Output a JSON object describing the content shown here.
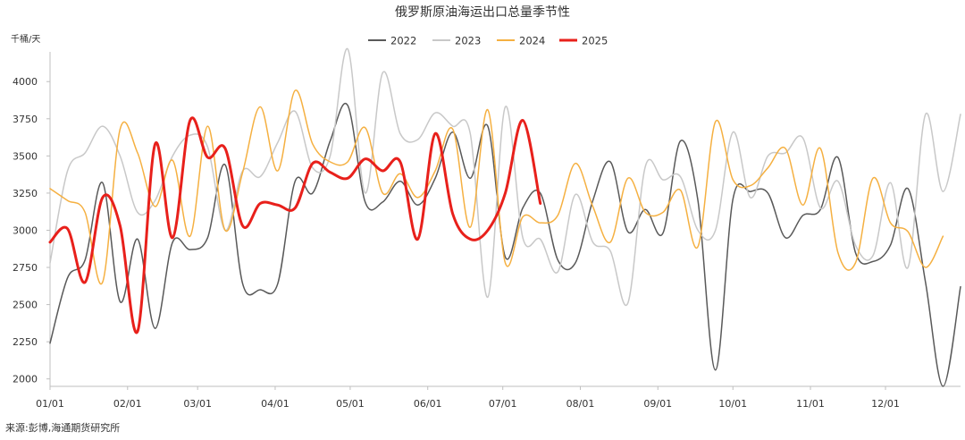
{
  "chart_data": {
    "type": "line",
    "title": "俄罗斯原油海运出口总量季节性",
    "ylabel": "千桶/天",
    "xlabel": "",
    "ylim": [
      1950,
      4200
    ],
    "yticks": [
      2000,
      2250,
      2500,
      2750,
      3000,
      3250,
      3500,
      3750,
      4000
    ],
    "x_tick_labels": [
      "01/01",
      "02/01",
      "03/01",
      "04/01",
      "05/01",
      "06/01",
      "07/01",
      "08/01",
      "09/01",
      "10/01",
      "11/01",
      "12/01"
    ],
    "x_unit": "week of year (1–53)",
    "grid": false,
    "legend_position": "top-center",
    "series": [
      {
        "name": "2022",
        "color": "#595959",
        "values": [
          [
            1,
            2240
          ],
          [
            2,
            2680
          ],
          [
            3,
            2800
          ],
          [
            4,
            3320
          ],
          [
            5,
            2520
          ],
          [
            6,
            2940
          ],
          [
            7,
            2340
          ],
          [
            8,
            2920
          ],
          [
            9,
            2870
          ],
          [
            10,
            2950
          ],
          [
            11,
            3440
          ],
          [
            12,
            2640
          ],
          [
            13,
            2600
          ],
          [
            14,
            2640
          ],
          [
            15,
            3330
          ],
          [
            16,
            3250
          ],
          [
            17,
            3600
          ],
          [
            18,
            3840
          ],
          [
            19,
            3190
          ],
          [
            20,
            3190
          ],
          [
            21,
            3330
          ],
          [
            22,
            3170
          ],
          [
            23,
            3350
          ],
          [
            24,
            3660
          ],
          [
            25,
            3350
          ],
          [
            26,
            3700
          ],
          [
            27,
            2820
          ],
          [
            28,
            3150
          ],
          [
            29,
            3250
          ],
          [
            30,
            2800
          ],
          [
            31,
            2780
          ],
          [
            32,
            3200
          ],
          [
            33,
            3460
          ],
          [
            34,
            2990
          ],
          [
            35,
            3140
          ],
          [
            36,
            2980
          ],
          [
            37,
            3600
          ],
          [
            38,
            3200
          ],
          [
            39,
            2060
          ],
          [
            40,
            3210
          ],
          [
            41,
            3260
          ],
          [
            42,
            3250
          ],
          [
            43,
            2950
          ],
          [
            44,
            3100
          ],
          [
            45,
            3140
          ],
          [
            46,
            3490
          ],
          [
            47,
            2850
          ],
          [
            48,
            2790
          ],
          [
            49,
            2900
          ],
          [
            50,
            3280
          ],
          [
            51,
            2650
          ],
          [
            52,
            1950
          ],
          [
            53,
            2620
          ]
        ]
      },
      {
        "name": "2023",
        "color": "#c8c8c8",
        "values": [
          [
            1,
            2780
          ],
          [
            2,
            3400
          ],
          [
            3,
            3520
          ],
          [
            4,
            3700
          ],
          [
            5,
            3500
          ],
          [
            6,
            3120
          ],
          [
            7,
            3200
          ],
          [
            8,
            3500
          ],
          [
            9,
            3640
          ],
          [
            10,
            3560
          ],
          [
            11,
            3000
          ],
          [
            12,
            3400
          ],
          [
            13,
            3360
          ],
          [
            14,
            3590
          ],
          [
            15,
            3800
          ],
          [
            16,
            3420
          ],
          [
            17,
            3500
          ],
          [
            18,
            4220
          ],
          [
            19,
            3250
          ],
          [
            20,
            4060
          ],
          [
            21,
            3650
          ],
          [
            22,
            3610
          ],
          [
            23,
            3790
          ],
          [
            24,
            3700
          ],
          [
            25,
            3650
          ],
          [
            26,
            2550
          ],
          [
            27,
            3830
          ],
          [
            28,
            2950
          ],
          [
            29,
            2940
          ],
          [
            30,
            2720
          ],
          [
            31,
            3240
          ],
          [
            32,
            2920
          ],
          [
            33,
            2860
          ],
          [
            34,
            2510
          ],
          [
            35,
            3430
          ],
          [
            36,
            3340
          ],
          [
            37,
            3360
          ],
          [
            38,
            3000
          ],
          [
            39,
            3000
          ],
          [
            40,
            3660
          ],
          [
            41,
            3220
          ],
          [
            42,
            3500
          ],
          [
            43,
            3520
          ],
          [
            44,
            3620
          ],
          [
            45,
            3150
          ],
          [
            46,
            3330
          ],
          [
            47,
            2900
          ],
          [
            48,
            2830
          ],
          [
            49,
            3320
          ],
          [
            50,
            2750
          ],
          [
            51,
            3780
          ],
          [
            52,
            3260
          ],
          [
            53,
            3780
          ]
        ]
      },
      {
        "name": "2024",
        "color": "#f5b041",
        "values": [
          [
            1,
            3280
          ],
          [
            2,
            3200
          ],
          [
            3,
            3120
          ],
          [
            4,
            2650
          ],
          [
            5,
            3680
          ],
          [
            6,
            3520
          ],
          [
            7,
            3160
          ],
          [
            8,
            3470
          ],
          [
            9,
            2960
          ],
          [
            10,
            3700
          ],
          [
            11,
            3000
          ],
          [
            12,
            3390
          ],
          [
            13,
            3830
          ],
          [
            14,
            3400
          ],
          [
            15,
            3940
          ],
          [
            16,
            3580
          ],
          [
            17,
            3460
          ],
          [
            18,
            3460
          ],
          [
            19,
            3690
          ],
          [
            20,
            3250
          ],
          [
            21,
            3380
          ],
          [
            22,
            3220
          ],
          [
            23,
            3400
          ],
          [
            24,
            3680
          ],
          [
            25,
            3020
          ],
          [
            26,
            3810
          ],
          [
            27,
            2780
          ],
          [
            28,
            3090
          ],
          [
            29,
            3050
          ],
          [
            30,
            3100
          ],
          [
            31,
            3450
          ],
          [
            32,
            3160
          ],
          [
            33,
            2920
          ],
          [
            34,
            3350
          ],
          [
            35,
            3120
          ],
          [
            36,
            3120
          ],
          [
            37,
            3270
          ],
          [
            38,
            2890
          ],
          [
            39,
            3730
          ],
          [
            40,
            3340
          ],
          [
            41,
            3300
          ],
          [
            42,
            3420
          ],
          [
            43,
            3550
          ],
          [
            44,
            3170
          ],
          [
            45,
            3550
          ],
          [
            46,
            2850
          ],
          [
            47,
            2780
          ],
          [
            48,
            3350
          ],
          [
            49,
            3050
          ],
          [
            50,
            2990
          ],
          [
            51,
            2750
          ],
          [
            52,
            2960
          ]
        ]
      },
      {
        "name": "2025",
        "color": "#e8201b",
        "values": [
          [
            1,
            2920
          ],
          [
            2,
            3010
          ],
          [
            3,
            2650
          ],
          [
            4,
            3220
          ],
          [
            5,
            3030
          ],
          [
            6,
            2320
          ],
          [
            7,
            3580
          ],
          [
            8,
            2950
          ],
          [
            9,
            3740
          ],
          [
            10,
            3490
          ],
          [
            11,
            3550
          ],
          [
            12,
            3030
          ],
          [
            13,
            3180
          ],
          [
            14,
            3170
          ],
          [
            15,
            3150
          ],
          [
            16,
            3450
          ],
          [
            17,
            3390
          ],
          [
            18,
            3350
          ],
          [
            19,
            3480
          ],
          [
            20,
            3400
          ],
          [
            21,
            3460
          ],
          [
            22,
            2940
          ],
          [
            23,
            3650
          ],
          [
            24,
            3110
          ],
          [
            25,
            2940
          ],
          [
            26,
            3000
          ],
          [
            27,
            3250
          ],
          [
            28,
            3740
          ],
          [
            29,
            3180
          ]
        ]
      }
    ]
  },
  "source": "来源:彭博,海通期货研究所"
}
